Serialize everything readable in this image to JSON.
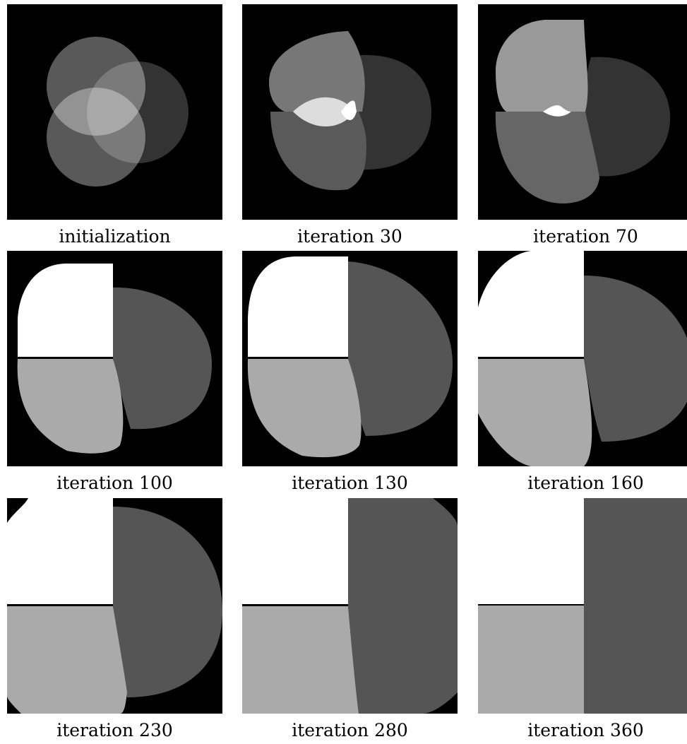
{
  "figure": {
    "captions": [
      "initialization",
      "iteration 30",
      "iteration 70",
      "iteration 100",
      "iteration 130",
      "iteration 160",
      "iteration 230",
      "iteration 280",
      "iteration 360"
    ]
  },
  "colors": {
    "background": "#000000",
    "white_region": "#ffffff",
    "light_gray_region": "#aaaaaa",
    "dark_gray_region": "#555555"
  }
}
